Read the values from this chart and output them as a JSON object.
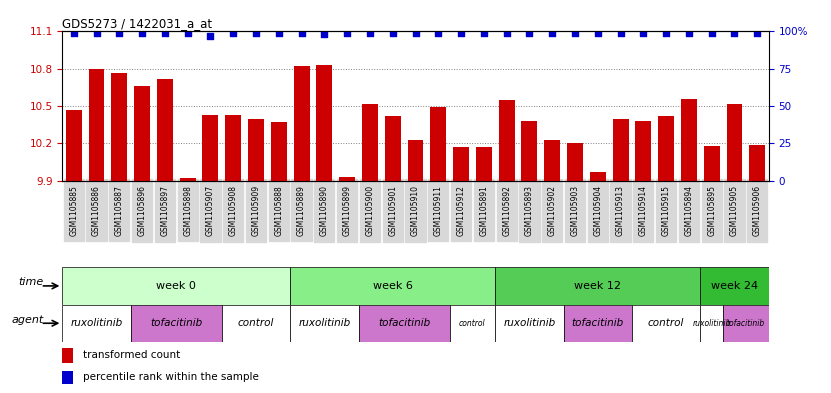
{
  "title": "GDS5273 / 1422031_a_at",
  "samples": [
    "GSM1105885",
    "GSM1105886",
    "GSM1105887",
    "GSM1105896",
    "GSM1105897",
    "GSM1105898",
    "GSM1105907",
    "GSM1105908",
    "GSM1105909",
    "GSM1105888",
    "GSM1105889",
    "GSM1105890",
    "GSM1105899",
    "GSM1105900",
    "GSM1105901",
    "GSM1105910",
    "GSM1105911",
    "GSM1105912",
    "GSM1105891",
    "GSM1105892",
    "GSM1105893",
    "GSM1105902",
    "GSM1105903",
    "GSM1105904",
    "GSM1105913",
    "GSM1105914",
    "GSM1105915",
    "GSM1105894",
    "GSM1105895",
    "GSM1105905",
    "GSM1105906"
  ],
  "bar_values": [
    10.47,
    10.8,
    10.77,
    10.66,
    10.72,
    9.92,
    10.43,
    10.43,
    10.4,
    10.37,
    10.82,
    10.83,
    9.93,
    10.52,
    10.42,
    10.23,
    10.49,
    10.17,
    10.17,
    10.55,
    10.38,
    10.23,
    10.2,
    9.97,
    10.4,
    10.38,
    10.42,
    10.56,
    10.18,
    10.52,
    10.19
  ],
  "percentile_values": [
    99,
    99,
    99,
    99,
    99,
    99,
    97,
    99,
    99,
    99,
    99,
    98,
    99,
    99,
    99,
    99,
    99,
    99,
    99,
    99,
    99,
    99,
    99,
    99,
    99,
    99,
    99,
    99,
    99,
    99,
    99
  ],
  "ylim_left": [
    9.9,
    11.1
  ],
  "ylim_right": [
    0,
    100
  ],
  "yticks_left": [
    9.9,
    10.2,
    10.5,
    10.8,
    11.1
  ],
  "yticks_right": [
    0,
    25,
    50,
    75,
    100
  ],
  "bar_color": "#cc0000",
  "dot_color": "#0000cc",
  "bg_color": "#e8e8e8",
  "time_groups": [
    {
      "label": "week 0",
      "start": 0,
      "end": 9,
      "color": "#ccffcc"
    },
    {
      "label": "week 6",
      "start": 10,
      "end": 18,
      "color": "#88ee88"
    },
    {
      "label": "week 12",
      "start": 19,
      "end": 27,
      "color": "#55cc55"
    },
    {
      "label": "week 24",
      "start": 28,
      "end": 30,
      "color": "#33bb33"
    }
  ],
  "agent_groups": [
    {
      "label": "ruxolitinib",
      "start": 0,
      "end": 2,
      "color": "#ffffff"
    },
    {
      "label": "tofacitinib",
      "start": 3,
      "end": 6,
      "color": "#dd88dd"
    },
    {
      "label": "control",
      "start": 7,
      "end": 9,
      "color": "#ffffff"
    },
    {
      "label": "ruxolitinib",
      "start": 10,
      "end": 12,
      "color": "#ffffff"
    },
    {
      "label": "tofacitinib",
      "start": 13,
      "end": 16,
      "color": "#dd88dd"
    },
    {
      "label": "control",
      "start": 17,
      "end": 18,
      "color": "#ffffff"
    },
    {
      "label": "ruxolitinib",
      "start": 19,
      "end": 21,
      "color": "#ffffff"
    },
    {
      "label": "tofacitinib",
      "start": 22,
      "end": 24,
      "color": "#dd88dd"
    },
    {
      "label": "control",
      "start": 25,
      "end": 27,
      "color": "#ffffff"
    },
    {
      "label": "ruxolitinib",
      "start": 28,
      "end": 28,
      "color": "#ffffff"
    },
    {
      "label": "tofacitinib",
      "start": 29,
      "end": 30,
      "color": "#dd88dd"
    }
  ]
}
